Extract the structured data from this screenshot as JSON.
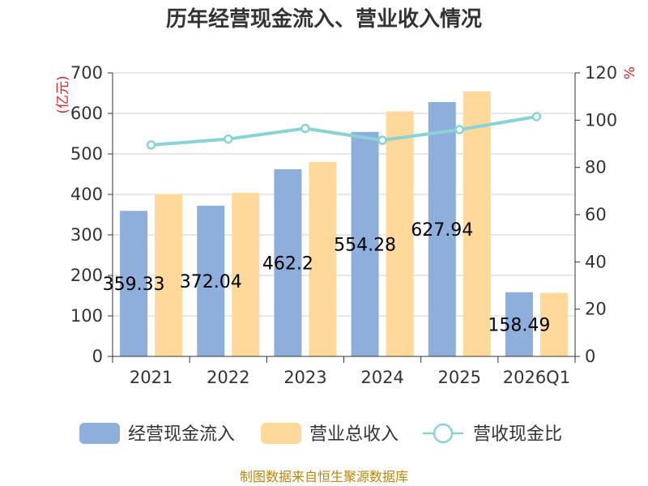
{
  "chart_data": {
    "type": "bar",
    "title": "历年经营现金流入、营业收入情况",
    "categories": [
      "2021",
      "2022",
      "2023",
      "2024",
      "2025",
      "2026Q1"
    ],
    "series": [
      {
        "name": "经营现金流入",
        "type": "bar",
        "axis": "left",
        "color": "#8eaedb",
        "values": [
          359.33,
          372.04,
          462.2,
          554.28,
          627.94,
          158.49
        ],
        "labels": [
          "359.33",
          "372.04",
          "462.2",
          "554.28",
          "627.94",
          "158.49"
        ]
      },
      {
        "name": "营业总收入",
        "type": "bar",
        "axis": "left",
        "color": "#ffd99a",
        "values": [
          401,
          404,
          480,
          605,
          654,
          157
        ]
      },
      {
        "name": "营收现金比",
        "type": "line",
        "axis": "right",
        "color": "#89d3d6",
        "values": [
          89.5,
          92.0,
          96.5,
          91.5,
          96.0,
          101.5
        ]
      }
    ],
    "y_left": {
      "label": "(亿元)",
      "min": 0,
      "max": 700,
      "ticks": [
        0,
        100,
        200,
        300,
        400,
        500,
        600,
        700
      ]
    },
    "y_right": {
      "label": "%",
      "min": 0,
      "max": 120,
      "ticks": [
        0,
        20,
        40,
        60,
        80,
        100,
        120
      ]
    },
    "grid": true,
    "legend_position": "bottom"
  },
  "source": "制图数据来自恒生聚源数据库"
}
